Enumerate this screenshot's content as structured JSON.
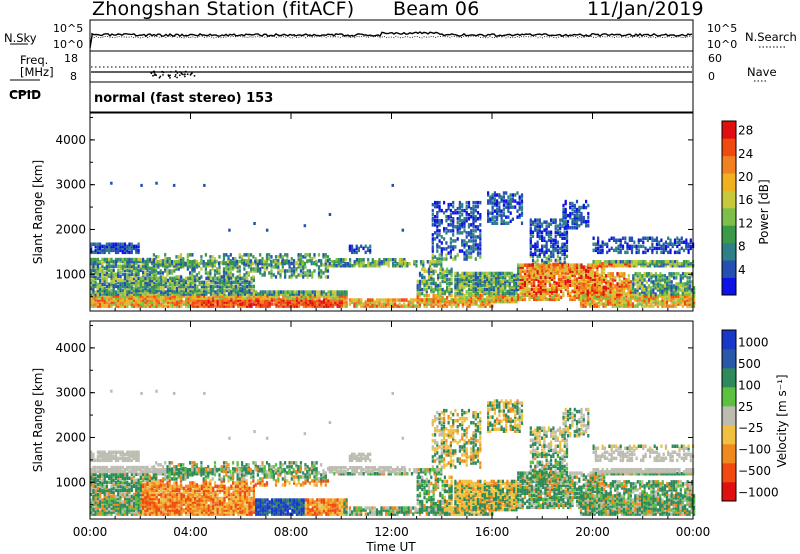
{
  "header": {
    "station": "Zhongshan Station (fitACF)",
    "beam": "Beam 06",
    "date": "11/Jan/2019"
  },
  "panels": {
    "nsky": {
      "label": "N.Sky",
      "top_tick": "10^5",
      "bottom_tick": "10^0"
    },
    "nsearch": {
      "label": "N.Search",
      "top_tick": "10^5",
      "bottom_tick": "10^0"
    },
    "freq": {
      "label_line1": "Freq.",
      "label_line2": "[MHz]",
      "top_tick": "18",
      "bottom_tick": "8"
    },
    "nave": {
      "label": "Nave",
      "top_tick": "60",
      "bottom_tick": "0"
    },
    "cpid": {
      "label": "CPID",
      "mode": "normal (fast stereo) 153"
    }
  },
  "chart_data": [
    {
      "type": "heatmap",
      "name": "power",
      "ylabel": "Slant Range [km]",
      "xlabel": "",
      "ylim": [
        180,
        4600
      ],
      "yticks": [
        "1000",
        "2000",
        "3000",
        "4000"
      ],
      "xticks": [
        "00:00",
        "04:00",
        "08:00",
        "12:00",
        "16:00",
        "20:00",
        "00:00"
      ],
      "colorbar": {
        "label": "Power [dB]",
        "ticks": [
          "4",
          "8",
          "12",
          "16",
          "20",
          "24",
          "28"
        ],
        "colors": [
          "#0d12e6",
          "#2450b2",
          "#2e7f86",
          "#3a9a4a",
          "#7cc04a",
          "#c8c83c",
          "#f0b020",
          "#f08020",
          "#f04a10",
          "#e01010"
        ]
      }
    },
    {
      "type": "heatmap",
      "name": "velocity",
      "ylabel": "Slant Range [km]",
      "xlabel": "Time UT",
      "ylim": [
        180,
        4600
      ],
      "yticks": [
        "1000",
        "2000",
        "3000",
        "4000"
      ],
      "xticks": [
        "00:00",
        "04:00",
        "08:00",
        "12:00",
        "16:00",
        "20:00",
        "00:00"
      ],
      "colorbar": {
        "label": "Velocity [m s⁻¹]",
        "ticks": [
          "1000",
          "500",
          "100",
          "25",
          "−25",
          "−100",
          "−500",
          "−1000"
        ],
        "colors": [
          "#1838c8",
          "#2858a8",
          "#2e8a5a",
          "#5cc040",
          "#bcbcb0",
          "#f0c040",
          "#f08a20",
          "#f04a10",
          "#e01010"
        ]
      }
    }
  ]
}
